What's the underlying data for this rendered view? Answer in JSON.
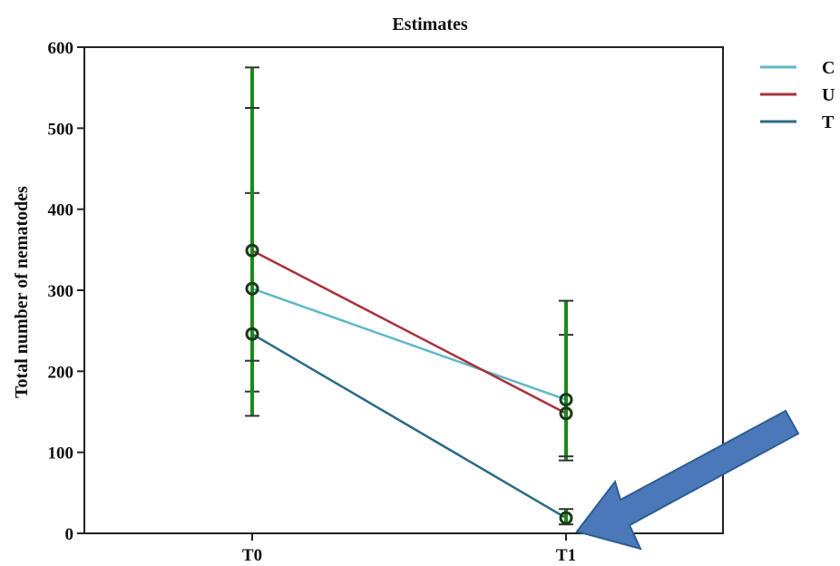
{
  "chart_data": {
    "type": "line",
    "title": "Estimates",
    "xlabel": "",
    "ylabel": "Total number of nematodes",
    "categories": [
      "T0",
      "T1"
    ],
    "ylim": [
      0,
      600
    ],
    "yticks": [
      0,
      100,
      200,
      300,
      400,
      500,
      600
    ],
    "grid": false,
    "legend_position": "right",
    "series": [
      {
        "name": "C",
        "values": [
          302,
          165
        ],
        "error_low": [
          175,
          90
        ],
        "error_high": [
          420,
          245
        ],
        "color": "#5fb8c8"
      },
      {
        "name": "U",
        "values": [
          349,
          148
        ],
        "error_low": [
          145,
          95
        ],
        "error_high": [
          575,
          287
        ],
        "color": "#a8323c"
      },
      {
        "name": "T",
        "values": [
          246,
          19
        ],
        "error_low": [
          213,
          11
        ],
        "error_high": [
          525,
          30
        ],
        "color": "#2a6a86"
      }
    ],
    "error_bar_color": "#1a8a1a",
    "marker_color": "#1a3a1a",
    "annotation": {
      "type": "arrow",
      "color": "#4a78b8",
      "points_to": "T1"
    }
  }
}
